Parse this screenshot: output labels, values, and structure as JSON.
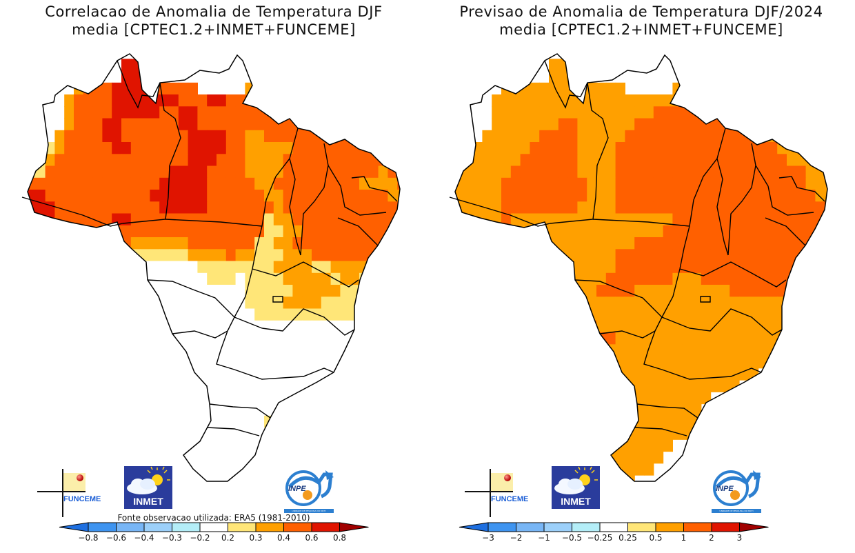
{
  "panels": [
    {
      "id": "correlation",
      "title_line1": "Correlacao de Anomalia de Temperatura DJF",
      "title_line2": "media [CPTEC1.2+INMET+FUNCEME]",
      "footnote": "Fonte observacao utilizada: ERA5 (1981-2010)",
      "legend": {
        "labels": [
          "-0.8",
          "-0.6",
          "-0.4",
          "-0.3",
          "-0.2",
          "0.2",
          "0.3",
          "0.4",
          "0.6",
          "0.8"
        ],
        "colors": [
          "#1e6fe0",
          "#3e94f0",
          "#78b6f6",
          "#9cd0fa",
          "#b4eef8",
          "#ffffff",
          "#ffe678",
          "#ffa000",
          "#ff6000",
          "#e01400",
          "#a00000"
        ]
      },
      "grid": [
        "............................................",
        "..........99...............................",
        "..........999...........22..................",
        ".....7888999988888.....7722.................",
        "....78888999999988899888.8777...............",
        "....7888899999889988888888888899............",
        "....788899888888998888888888889898..........",
        "...7888899888888899998877888888888888.......",
        "..6788888998888889999887777788888888888.....",
        ".678888888888888899988877778888888888888....",
        "6688888888888889999888877778888888888788....",
        "8888888888888899999888887788888888877778....",
        "99888888888889999998888887788888888888778...",
        "999888888888889999988888887888888888888889..",
        ".998888889988888888888888677888888888888899.",
        "..888888888888888888888886677888888888888889",
        "......88888777777888888866778888888888888898",
        ".......88876666667777877666777888888888888..",
        "........87655555556666666677776677776888888.",
        "........86655555555666566667777767766667788.",
        "..........5555555555555666667777766655667778",
        "..........555555555555566667777666655566778.",
        "...........5555555555555666666666665555667..",
        "............55555555555555555555555556677...",
        "............555555555555555555555555567.....",
        ".............555555555555555555555566.......",
        "..............5555555555555555555556........",
        "..............555555555555555555...........",
        "...............555555555555555.............",
        "...............555555555555................",
        "..............655555555555.................",
        ".............6655555555556.................",
        "............6555555555555..................",
        "...........555555555555....................",
        "...........55555555555.....................",
        "............555555555......................",
        ".............555555........................",
        "..............5555........................."
      ]
    },
    {
      "id": "forecast",
      "title_line1": "Previsao de Anomalia de Temperatura DJF/2024",
      "title_line2": "media [CPTEC1.2+INMET+FUNCEME]",
      "footnote": "",
      "legend": {
        "labels": [
          "-3",
          "-2",
          "-1",
          "-0.5",
          "-0.25",
          "0.25",
          "0.5",
          "1",
          "2",
          "3"
        ],
        "colors": [
          "#1e6fe0",
          "#3e94f0",
          "#78b6f6",
          "#9cd0fa",
          "#b4eef8",
          "#ffffff",
          "#ffe678",
          "#ffa000",
          "#ff6000",
          "#e01400",
          "#a00000"
        ]
      },
      "grid": [
        "............................................",
        "..........77...............................",
        "..........777...........77..................",
        ".....7777777777777.....7777.................",
        "....77777777777777777777.7777...............",
        "....7777777777777777788888877777............",
        "....777777788777777888888888887777..........",
        "...7777778888777778888888888888887777.......",
        "..777777888887777888888888888888887777......",
        ".77777788888877778888888888888888887777.....",
        "7777778888888777788888888888888888888777....",
        "7777788888888877788888888888888888888777....",
        "77777888888888777888888888888888888888777...",
        "7777788888888777788888888888888888888888777.",
        ".7777877777777777777777888888888888888887777",
        "..777777777777777777778888888888888888887777",
        "......77777777777778888888888888888888888777",
        ".......777777777788888888888888888888888877.",
        "........777777777888888888888888888888887...",
        "........777777778888888777888888888888877...",
        "..........7777788887777777777888888777777...",
        "..........77777777777777777777777777777777..",
        "...........8777777777777777777777777777.....",
        "............888777777777777777777777777.....",
        "............88888777777777777777777777......",
        ".............88877777777777777777777........",
        "..............88877777777777777777.........",
        "..............777777777777777777...........",
        "...............777777777777777.............",
        "...............777777777777................",
        "..............777777777777.................",
        ".............77777777777777................",
        "............7777777777777..................",
        "...........777777777777....................",
        "...........77777777777.....................",
        "............777777777......................",
        ".............777777........................",
        "..............7777........................."
      ]
    }
  ],
  "logos": {
    "funceme_label": "FUNCEME",
    "inmet_label": "INMET",
    "inpe_label": "INPE",
    "inpe_subtitle": "UNIDADE DE PESQUISA DO MCTI"
  }
}
